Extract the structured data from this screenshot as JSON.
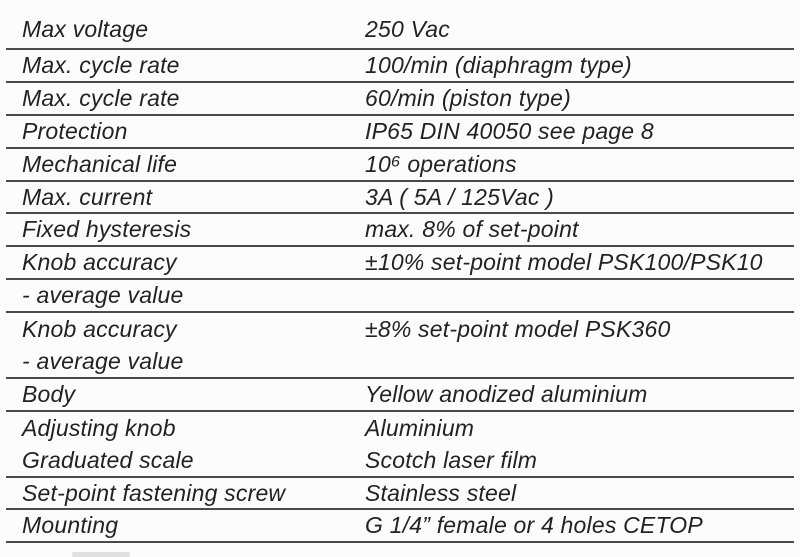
{
  "theme": {
    "background": "#fcfcfc",
    "text": "#222222",
    "rule": "#4a4a4a"
  },
  "table": {
    "rows": [
      {
        "label": "Max voltage",
        "value": "250 Vac"
      },
      {
        "label": "Max. cycle rate",
        "value": "100/min (diaphragm type)"
      },
      {
        "label": "Max. cycle rate",
        "value": "60/min (piston type)"
      },
      {
        "label": "Protection",
        "value": "IP65 DIN 40050 see page 8"
      },
      {
        "label": "Mechanical life",
        "value": "10⁶ operations"
      },
      {
        "label": "Max. current",
        "value": "3A ( 5A / 125Vac )"
      },
      {
        "label": "Fixed hysteresis",
        "value": "max. 8% of set-point"
      },
      {
        "label": "Knob accuracy",
        "value": "±10% set-point model PSK100/PSK10"
      },
      {
        "label": "- average value",
        "value": ""
      },
      {
        "label": "Knob accuracy",
        "value": "±8% set-point model PSK360"
      },
      {
        "label": "- average value",
        "value": ""
      },
      {
        "label": "Body",
        "value": "Yellow anodized aluminium"
      },
      {
        "label": "Adjusting knob",
        "value": "Aluminium"
      },
      {
        "label": "Graduated scale",
        "value": "Scotch laser film"
      },
      {
        "label": "Set-point fastening screw",
        "value": "Stainless steel"
      },
      {
        "label": "Mounting",
        "value": "G 1/4” female or 4 holes CETOP"
      }
    ]
  }
}
